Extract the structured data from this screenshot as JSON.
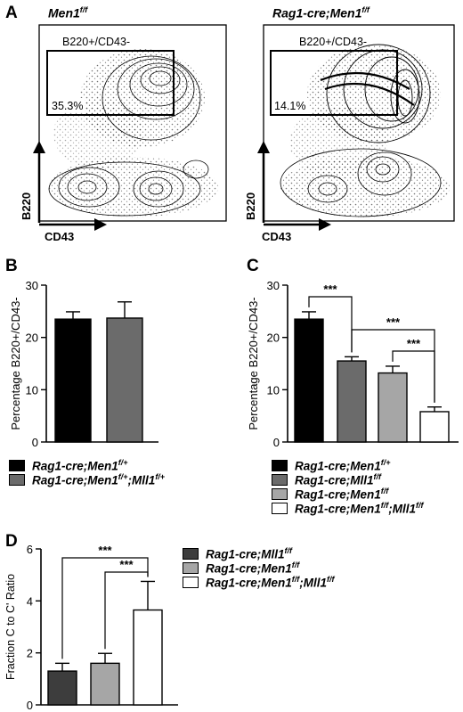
{
  "panels": {
    "a": "A",
    "b": "B",
    "c": "C",
    "d": "D"
  },
  "flow": [
    {
      "title_main": "Men1",
      "title_sup": "f/f",
      "gate_label": "B220+/CD43-",
      "percent": "35.3%",
      "xlabel": "CD43",
      "ylabel": "B220"
    },
    {
      "title_main": "Rag1-cre;Men1",
      "title_sup": "f/f",
      "gate_label": "B220+/CD43-",
      "percent": "14.1%",
      "xlabel": "CD43",
      "ylabel": "B220"
    }
  ],
  "legend_b": [
    {
      "color": "#000000",
      "parts": [
        [
          "Rag1-cre;Men1",
          ""
        ],
        [
          "f/+",
          "sup"
        ]
      ]
    },
    {
      "color": "#6b6b6b",
      "parts": [
        [
          "Rag1-cre;Men1",
          ""
        ],
        [
          "f/+",
          "sup"
        ],
        [
          ";Mll1",
          ""
        ],
        [
          "f/+",
          "sup"
        ]
      ]
    }
  ],
  "legend_c": [
    {
      "color": "#000000",
      "parts": [
        [
          "Rag1-cre;Men1",
          ""
        ],
        [
          "f/+",
          "sup"
        ]
      ]
    },
    {
      "color": "#6b6b6b",
      "parts": [
        [
          "Rag1-cre;Mll1",
          ""
        ],
        [
          "f/f",
          "sup"
        ]
      ]
    },
    {
      "color": "#a6a6a6",
      "parts": [
        [
          "Rag1-cre;Men1",
          ""
        ],
        [
          "f/f",
          "sup"
        ]
      ]
    },
    {
      "color": "#ffffff",
      "parts": [
        [
          "Rag1-cre;Men1",
          ""
        ],
        [
          "f/f",
          "sup"
        ],
        [
          ";Mll1",
          ""
        ],
        [
          "f/f",
          "sup"
        ]
      ]
    }
  ],
  "legend_d": [
    {
      "color": "#3d3d3d",
      "parts": [
        [
          "Rag1-cre;Mll1",
          ""
        ],
        [
          "f/f",
          "sup"
        ]
      ]
    },
    {
      "color": "#a6a6a6",
      "parts": [
        [
          "Rag1-cre;Men1",
          ""
        ],
        [
          "f/f",
          "sup"
        ]
      ]
    },
    {
      "color": "#ffffff",
      "parts": [
        [
          "Rag1-cre;Men1",
          ""
        ],
        [
          "f/f",
          "sup"
        ],
        [
          ";Mll1",
          ""
        ],
        [
          "f/f",
          "sup"
        ]
      ]
    }
  ],
  "chart_data": [
    {
      "id": "B",
      "type": "bar",
      "ylabel": "Percentage B220+/CD43-",
      "ylim": [
        0,
        30
      ],
      "yticks": [
        0,
        10,
        20,
        30
      ],
      "values": [
        23.5,
        23.7
      ],
      "errors": [
        1.4,
        3.1
      ],
      "colors": [
        "#000000",
        "#6b6b6b"
      ],
      "significance": []
    },
    {
      "id": "C",
      "type": "bar",
      "ylabel": "Percentage B220+/CD43-",
      "ylim": [
        0,
        30
      ],
      "yticks": [
        0,
        10,
        20,
        30
      ],
      "values": [
        23.5,
        15.5,
        13.2,
        5.8
      ],
      "errors": [
        1.4,
        0.8,
        1.3,
        0.9
      ],
      "colors": [
        "#000000",
        "#6b6b6b",
        "#a6a6a6",
        "#ffffff"
      ],
      "significance": [
        {
          "from": 0,
          "to": 1,
          "label": "***"
        },
        {
          "from": 1,
          "to": 3,
          "label": "***"
        },
        {
          "from": 2,
          "to": 3,
          "label": "***"
        }
      ]
    },
    {
      "id": "D",
      "type": "bar",
      "ylabel": "Fraction C to C' Ratio",
      "ylim": [
        0,
        6
      ],
      "yticks": [
        0,
        2,
        4,
        6
      ],
      "values": [
        1.3,
        1.6,
        3.65
      ],
      "errors": [
        0.3,
        0.38,
        1.1
      ],
      "colors": [
        "#3d3d3d",
        "#a6a6a6",
        "#ffffff"
      ],
      "significance": [
        {
          "from": 0,
          "to": 2,
          "label": "***"
        },
        {
          "from": 1,
          "to": 2,
          "label": "***"
        }
      ]
    }
  ]
}
